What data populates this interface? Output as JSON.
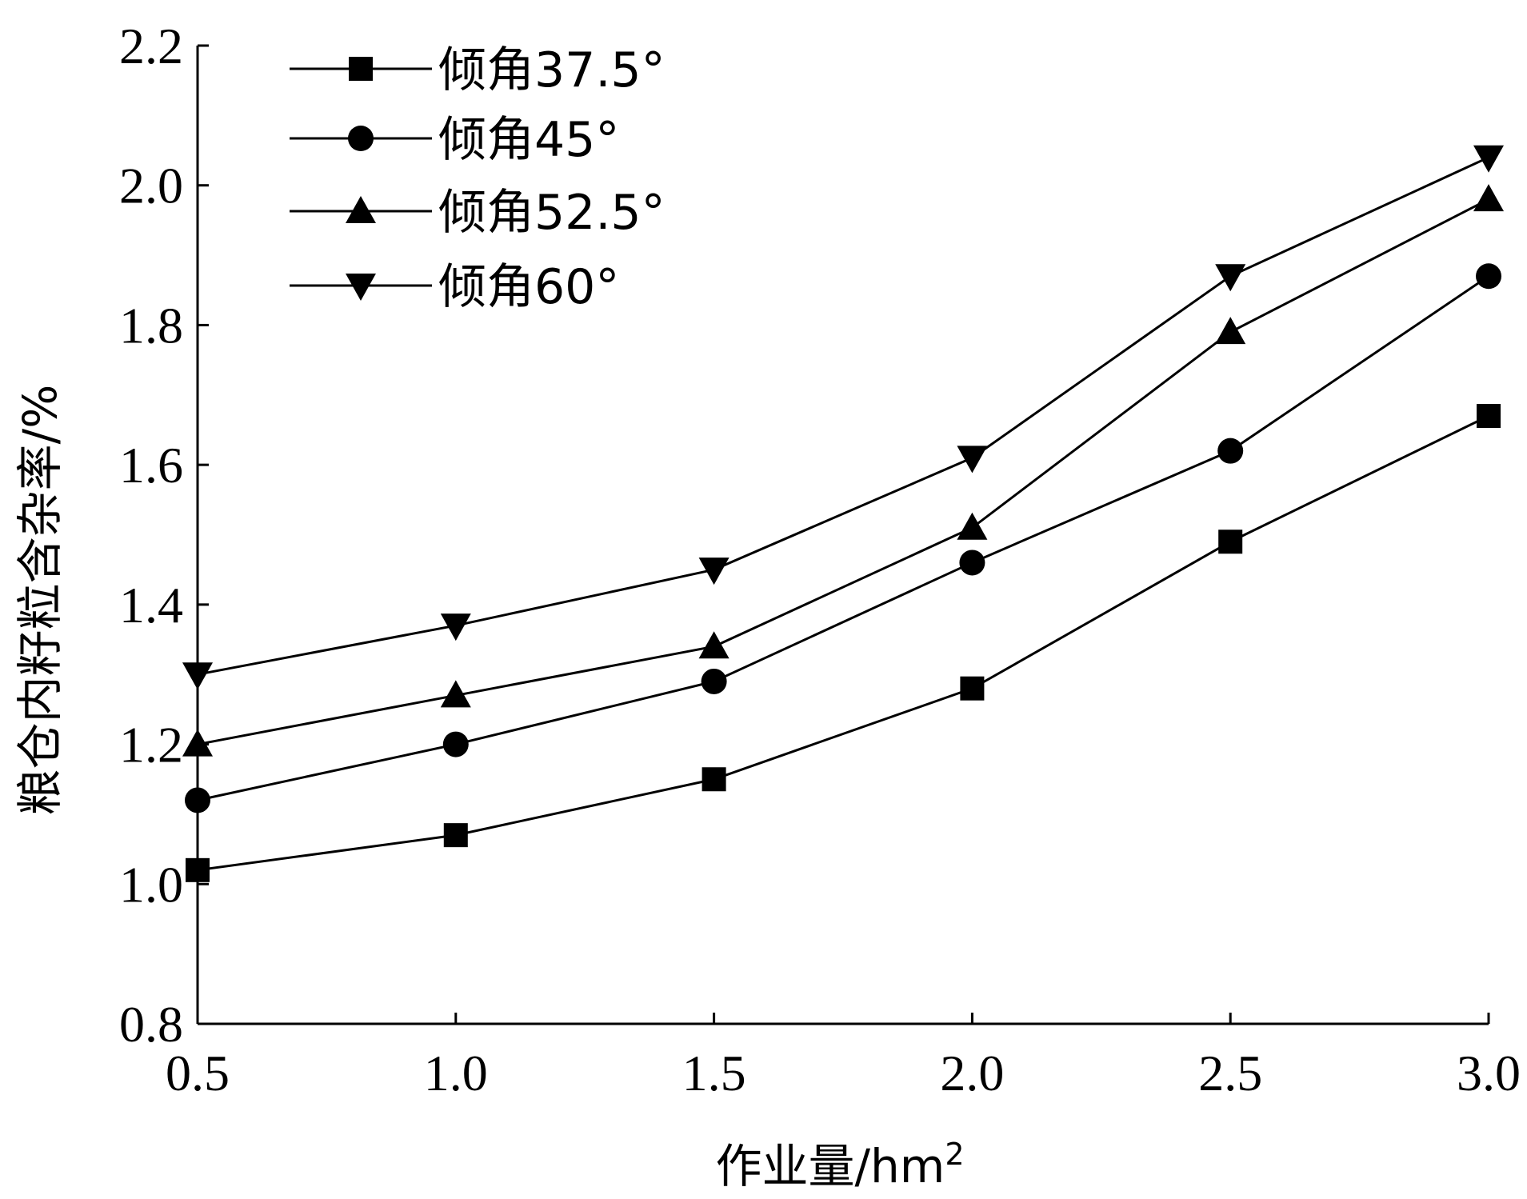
{
  "chart_data": {
    "type": "line",
    "title": "",
    "xlabel": "作业量/hm",
    "xlabel_sup": "2",
    "ylabel": "粮仓内籽粒含杂率/%",
    "x": [
      0.5,
      1.0,
      1.5,
      2.0,
      2.5,
      3.0
    ],
    "xticks": [
      "0.5",
      "1.0",
      "1.5",
      "2.0",
      "2.5",
      "3.0"
    ],
    "yticks": [
      "0.8",
      "1.0",
      "1.2",
      "1.4",
      "1.6",
      "1.8",
      "2.0",
      "2.2"
    ],
    "xlim": [
      0.5,
      3.0
    ],
    "ylim": [
      0.8,
      2.2
    ],
    "grid": false,
    "legend_position": "top-left",
    "series": [
      {
        "name": "倾角37.5°",
        "marker": "square",
        "values": [
          1.02,
          1.07,
          1.15,
          1.28,
          1.49,
          1.67
        ]
      },
      {
        "name": "倾角45°",
        "marker": "circle",
        "values": [
          1.12,
          1.2,
          1.29,
          1.46,
          1.62,
          1.87
        ]
      },
      {
        "name": "倾角52.5°",
        "marker": "triangle-up",
        "values": [
          1.2,
          1.27,
          1.34,
          1.51,
          1.79,
          1.98
        ]
      },
      {
        "name": "倾角60°",
        "marker": "triangle-down",
        "values": [
          1.3,
          1.37,
          1.45,
          1.61,
          1.87,
          2.04
        ]
      }
    ],
    "colors": {
      "line": "#000000",
      "marker": "#000000",
      "axis": "#000000"
    }
  }
}
